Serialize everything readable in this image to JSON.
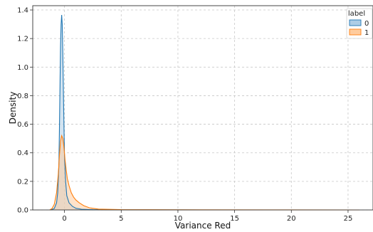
{
  "chart_data": {
    "type": "area",
    "title": "",
    "xlabel": "Variance Red",
    "ylabel": "Density",
    "xlim": [
      -2.8,
      27.2
    ],
    "ylim": [
      0,
      1.43
    ],
    "x_ticks": [
      0,
      5,
      10,
      15,
      20,
      25
    ],
    "y_ticks": [
      0.0,
      0.2,
      0.4,
      0.6,
      0.8,
      1.0,
      1.2,
      1.4
    ],
    "grid": true,
    "legend": {
      "title": "label",
      "placement": "top-right"
    },
    "series": [
      {
        "name": "0",
        "color": "#1f77b4",
        "fill": "#aecde6",
        "points": [
          [
            -1.2,
            0.0
          ],
          [
            -0.9,
            0.01
          ],
          [
            -0.7,
            0.05
          ],
          [
            -0.6,
            0.12
          ],
          [
            -0.5,
            0.3
          ],
          [
            -0.45,
            0.55
          ],
          [
            -0.4,
            0.85
          ],
          [
            -0.35,
            1.15
          ],
          [
            -0.3,
            1.3
          ],
          [
            -0.25,
            1.365
          ],
          [
            -0.2,
            1.3
          ],
          [
            -0.15,
            1.1
          ],
          [
            -0.1,
            0.85
          ],
          [
            -0.05,
            0.6
          ],
          [
            0.0,
            0.38
          ],
          [
            0.1,
            0.2
          ],
          [
            0.2,
            0.1
          ],
          [
            0.4,
            0.05
          ],
          [
            0.7,
            0.025
          ],
          [
            1.0,
            0.012
          ],
          [
            1.5,
            0.005
          ],
          [
            2.5,
            0.002
          ],
          [
            4.0,
            0.001
          ],
          [
            8.0,
            0.0005
          ],
          [
            12.0,
            0.0
          ],
          [
            20.0,
            0.0
          ],
          [
            26.0,
            0.0
          ]
        ]
      },
      {
        "name": "1",
        "color": "#ff7f0e",
        "fill": "#ffcc9e",
        "points": [
          [
            -1.3,
            0.0
          ],
          [
            -1.1,
            0.01
          ],
          [
            -0.9,
            0.04
          ],
          [
            -0.7,
            0.12
          ],
          [
            -0.55,
            0.25
          ],
          [
            -0.45,
            0.38
          ],
          [
            -0.35,
            0.48
          ],
          [
            -0.25,
            0.52
          ],
          [
            -0.15,
            0.5
          ],
          [
            -0.05,
            0.44
          ],
          [
            0.05,
            0.35
          ],
          [
            0.15,
            0.28
          ],
          [
            0.25,
            0.22
          ],
          [
            0.4,
            0.17
          ],
          [
            0.6,
            0.12
          ],
          [
            0.8,
            0.09
          ],
          [
            1.0,
            0.07
          ],
          [
            1.3,
            0.05
          ],
          [
            1.7,
            0.03
          ],
          [
            2.2,
            0.015
          ],
          [
            3.0,
            0.006
          ],
          [
            5.0,
            0.002
          ],
          [
            10.0,
            0.001
          ],
          [
            20.0,
            0.0005
          ],
          [
            26.0,
            0.0
          ]
        ]
      }
    ]
  }
}
